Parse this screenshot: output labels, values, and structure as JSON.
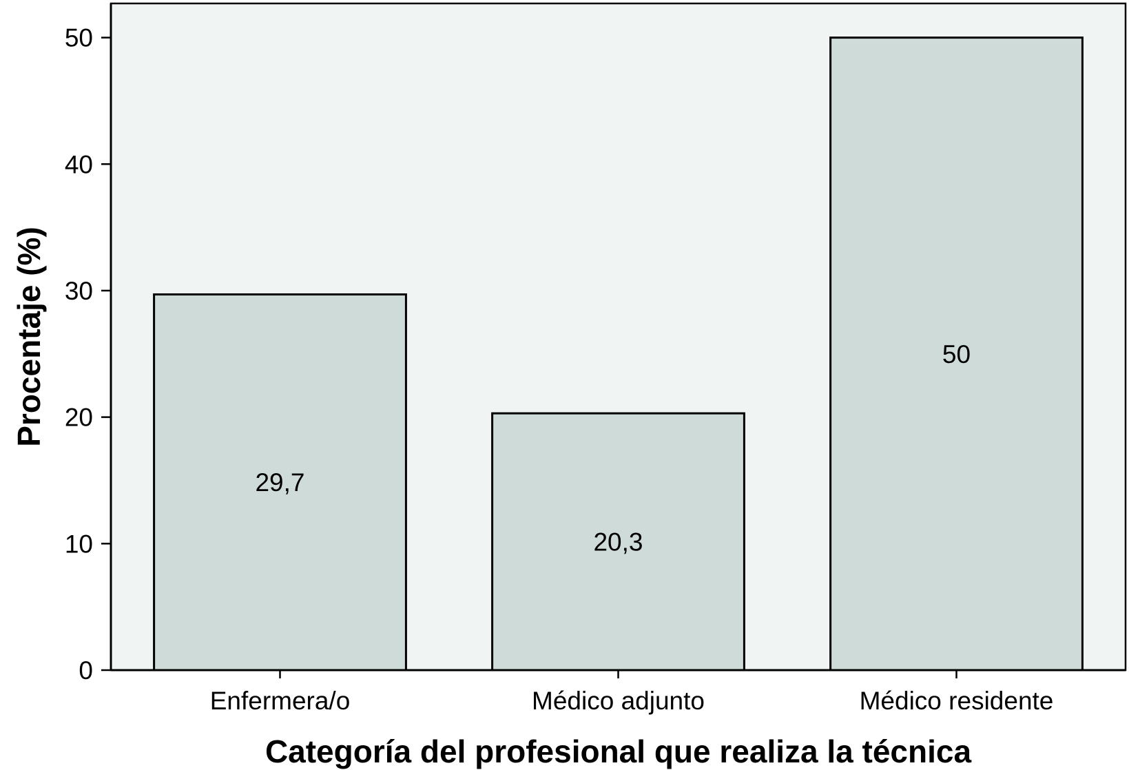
{
  "chart_data": {
    "type": "bar",
    "categories": [
      "Enfermera/o",
      "Médico adjunto",
      "Médico residente"
    ],
    "values": [
      29.7,
      20.3,
      50
    ],
    "data_labels": [
      "29,7",
      "20,3",
      "50"
    ],
    "xlabel": "Categoría del profesional que realiza la técnica",
    "ylabel": "Procentaje (%)",
    "ylim": [
      0,
      52.7
    ],
    "yticks": [
      0,
      10,
      20,
      30,
      40,
      50
    ],
    "grid": false,
    "legend": "none",
    "colors": {
      "plot_background": "#f0f4f3",
      "bar_fill": "#cfdbd8",
      "bar_stroke": "#000000"
    }
  }
}
